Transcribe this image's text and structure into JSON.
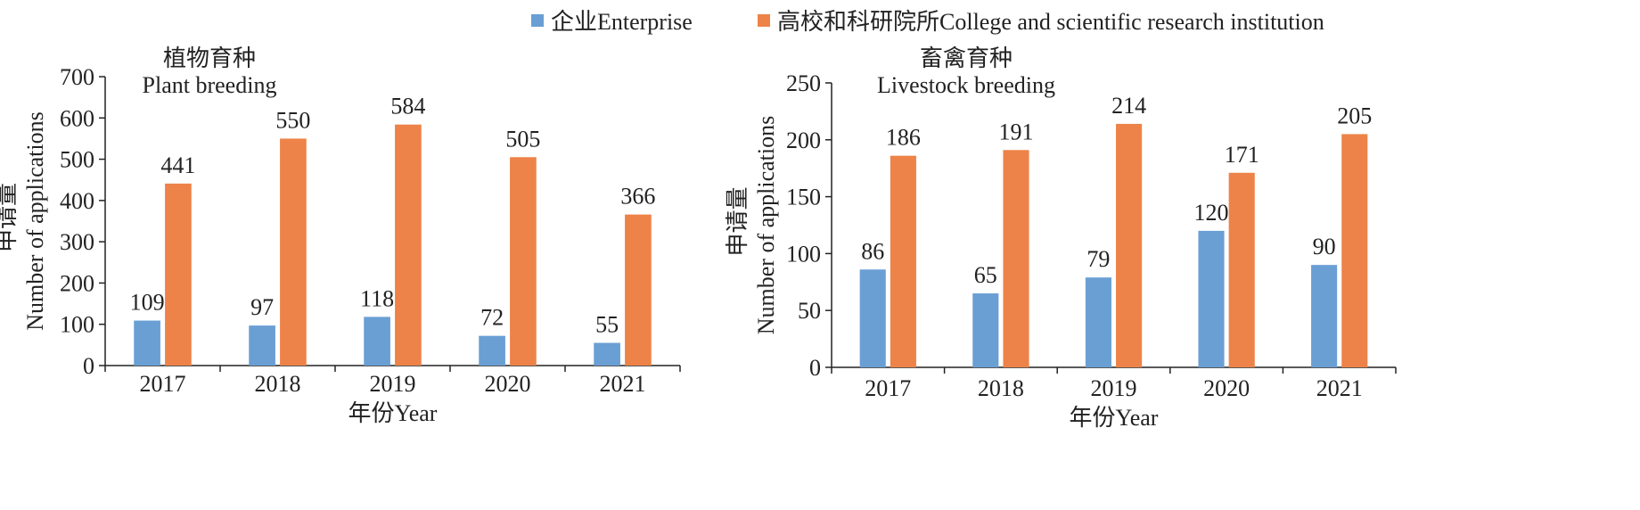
{
  "legend": [
    {
      "label": "企业Enterprise",
      "color": "#6a9fd4"
    },
    {
      "label": "高校和科研院所College and scientific research institution",
      "color": "#ed8348"
    }
  ],
  "chart_data": [
    {
      "type": "bar",
      "title": "植物育种",
      "subtitle": "Plant breeding",
      "xlabel": "年份Year",
      "ylabel_cn": "申请量",
      "ylabel": "Number of applications",
      "categories": [
        "2017",
        "2018",
        "2019",
        "2020",
        "2021"
      ],
      "ylim": [
        0,
        700
      ],
      "yticks": [
        0,
        100,
        200,
        300,
        400,
        500,
        600,
        700
      ],
      "series": [
        {
          "name": "企业Enterprise",
          "color": "#6a9fd4",
          "values": [
            109,
            97,
            118,
            72,
            55
          ]
        },
        {
          "name": "高校和科研院所College and scientific research institution",
          "color": "#ed8348",
          "values": [
            441,
            550,
            584,
            505,
            366
          ]
        }
      ]
    },
    {
      "type": "bar",
      "title": "畜禽育种",
      "subtitle": "Livestock breeding",
      "xlabel": "年份Year",
      "ylabel_cn": "申请量",
      "ylabel": "Number of applications",
      "categories": [
        "2017",
        "2018",
        "2019",
        "2020",
        "2021"
      ],
      "ylim": [
        0,
        250
      ],
      "yticks": [
        0,
        50,
        100,
        150,
        200,
        250
      ],
      "series": [
        {
          "name": "企业Enterprise",
          "color": "#6a9fd4",
          "values": [
            86,
            65,
            79,
            120,
            90
          ]
        },
        {
          "name": "高校和科研院所College and scientific research institution",
          "color": "#ed8348",
          "values": [
            186,
            191,
            214,
            171,
            205
          ]
        }
      ]
    }
  ]
}
